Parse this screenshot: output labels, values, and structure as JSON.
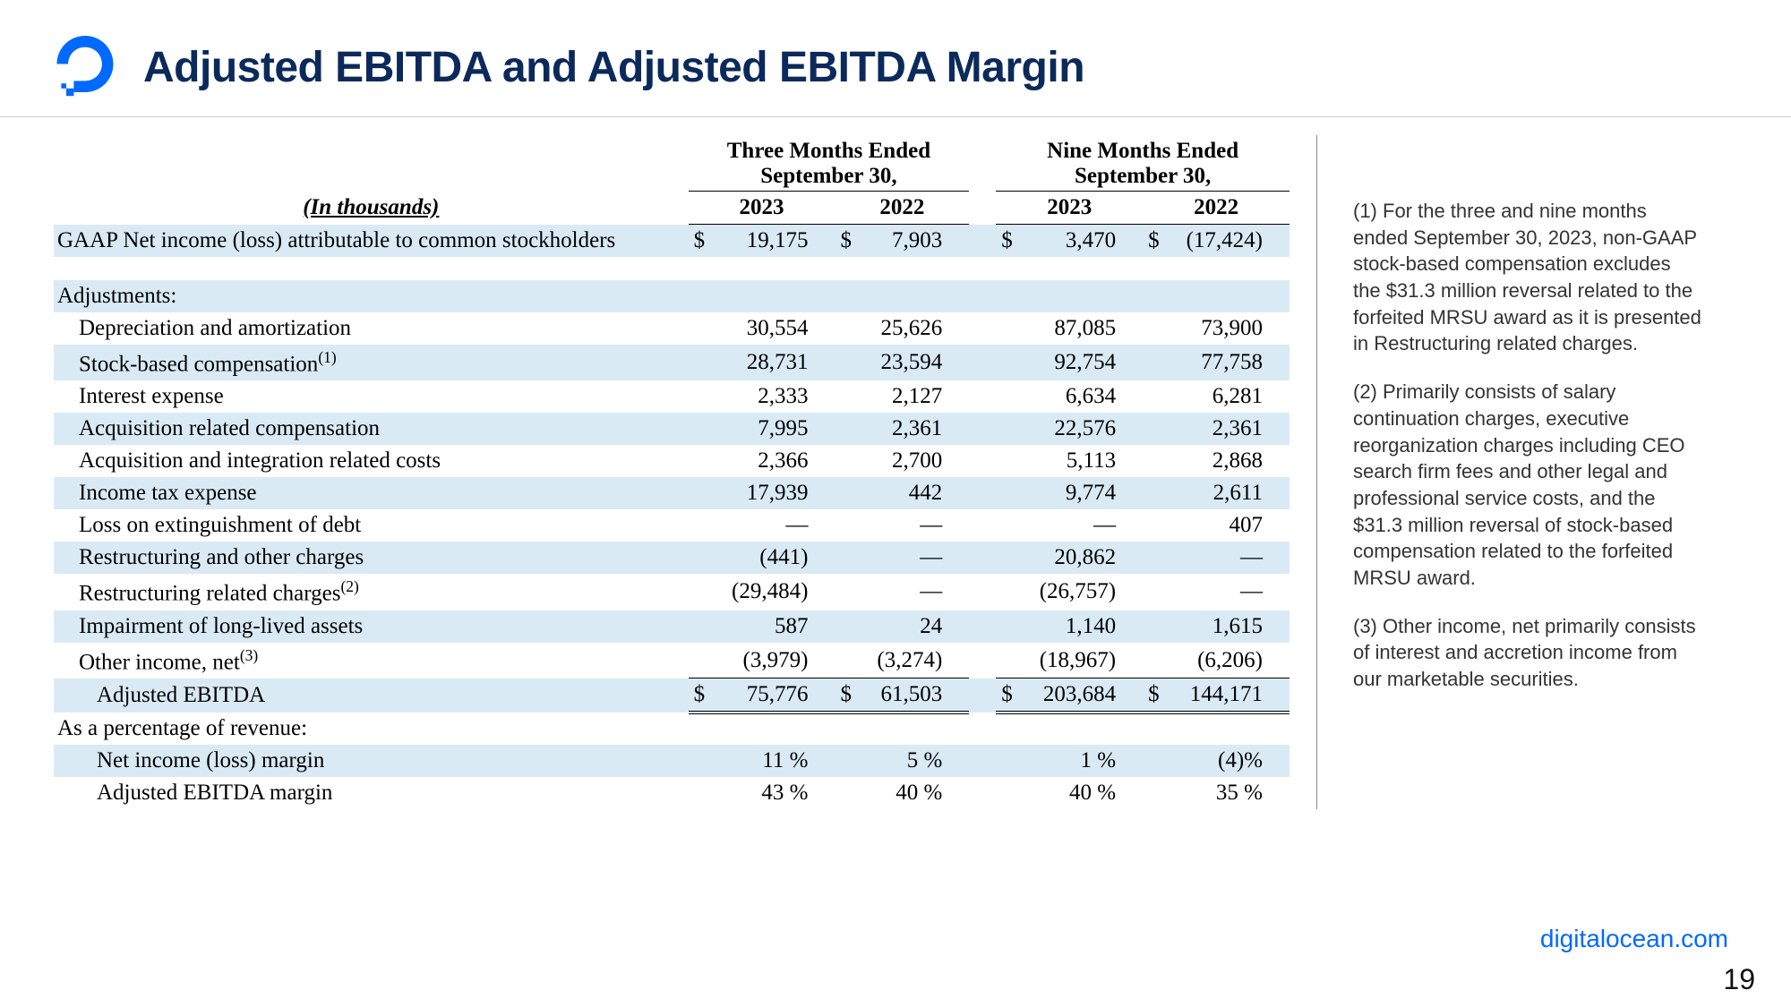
{
  "header": {
    "title": "Adjusted EBITDA and Adjusted EBITDA Margin"
  },
  "table": {
    "unit_label": "(In thousands)",
    "period_groups": [
      "Three Months Ended",
      "Nine Months Ended"
    ],
    "period_sub": "September 30,",
    "years": [
      "2023",
      "2022",
      "2023",
      "2022"
    ],
    "rows": [
      {
        "label": "GAAP Net income (loss) attributable to common stockholders",
        "indent": 0,
        "stripe": true,
        "currency": true,
        "values": [
          "19,175",
          "7,903",
          "3,470",
          "(17,424)"
        ]
      },
      {
        "label": "",
        "blank": true
      },
      {
        "label": "Adjustments:",
        "indent": 0,
        "stripe": true,
        "values": [
          "",
          "",
          "",
          ""
        ]
      },
      {
        "label": "Depreciation and amortization",
        "indent": 1,
        "values": [
          "30,554",
          "25,626",
          "87,085",
          "73,900"
        ]
      },
      {
        "label": "Stock-based compensation",
        "sup": "(1)",
        "indent": 1,
        "stripe": true,
        "values": [
          "28,731",
          "23,594",
          "92,754",
          "77,758"
        ]
      },
      {
        "label": "Interest expense",
        "indent": 1,
        "values": [
          "2,333",
          "2,127",
          "6,634",
          "6,281"
        ]
      },
      {
        "label": "Acquisition related compensation",
        "indent": 1,
        "stripe": true,
        "values": [
          "7,995",
          "2,361",
          "22,576",
          "2,361"
        ]
      },
      {
        "label": "Acquisition and integration related costs",
        "indent": 1,
        "values": [
          "2,366",
          "2,700",
          "5,113",
          "2,868"
        ]
      },
      {
        "label": "Income tax expense",
        "indent": 1,
        "stripe": true,
        "values": [
          "17,939",
          "442",
          "9,774",
          "2,611"
        ]
      },
      {
        "label": "Loss on extinguishment of debt",
        "indent": 1,
        "values": [
          "—",
          "—",
          "—",
          "407"
        ]
      },
      {
        "label": "Restructuring and other charges",
        "indent": 1,
        "stripe": true,
        "values": [
          "(441)",
          "—",
          "20,862",
          "—"
        ]
      },
      {
        "label": "Restructuring related charges",
        "sup": "(2)",
        "indent": 1,
        "values": [
          "(29,484)",
          "—",
          "(26,757)",
          "—"
        ]
      },
      {
        "label": "Impairment of long-lived assets",
        "indent": 1,
        "stripe": true,
        "values": [
          "587",
          "24",
          "1,140",
          "1,615"
        ]
      },
      {
        "label": "Other income, net",
        "sup": "(3)",
        "indent": 1,
        "subborder": true,
        "values": [
          "(3,979)",
          "(3,274)",
          "(18,967)",
          "(6,206)"
        ]
      },
      {
        "label": "Adjusted EBITDA",
        "indent": 2,
        "stripe": true,
        "totalline": true,
        "currency": true,
        "values": [
          "75,776",
          "61,503",
          "203,684",
          "144,171"
        ]
      },
      {
        "label": "As a percentage of revenue:",
        "indent": 0,
        "values": [
          "",
          "",
          "",
          ""
        ]
      },
      {
        "label": "Net income (loss) margin",
        "indent": 2,
        "stripe": true,
        "values": [
          "11 %",
          "5 %",
          "1 %",
          "(4)%"
        ]
      },
      {
        "label": "Adjusted EBITDA margin",
        "indent": 2,
        "values": [
          "43 %",
          "40 %",
          "40 %",
          "35 %"
        ]
      }
    ]
  },
  "notes": [
    "(1)  For the three and nine months ended September 30, 2023, non-GAAP stock-based compensation excludes the $31.3 million reversal related to the forfeited MRSU award as it is presented in Restructuring related charges.",
    "(2) Primarily consists of salary continuation charges, executive reorganization charges including CEO search firm fees and other legal and professional service costs, and the $31.3 million reversal of stock-based compensation related to the forfeited MRSU award.",
    "(3) Other income, net primarily consists of interest and accretion income from our marketable securities."
  ],
  "footer": {
    "link": "digitalocean.com",
    "page": "19"
  },
  "colors": {
    "brand": "#0069ff",
    "title": "#0b2a5b",
    "stripe": "#d9eaf5"
  }
}
